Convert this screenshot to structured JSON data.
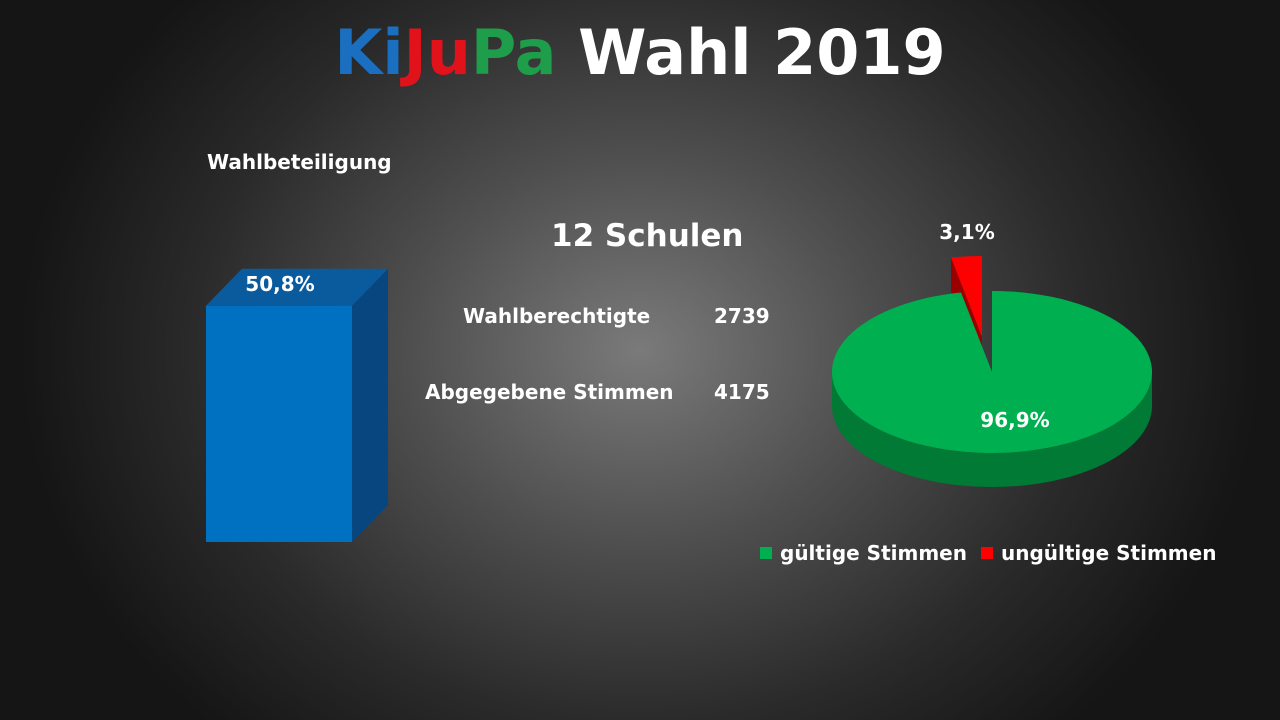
{
  "title": {
    "part1": "Ki",
    "part2": "Ju",
    "part3": "Pa",
    "part4": "Wahl 2019",
    "colors": [
      "#1a6fc0",
      "#e2121b",
      "#1e9e4a",
      "#ffffff"
    ]
  },
  "schools": "12 Schulen",
  "stats": [
    {
      "label": "Wahlberechtigte",
      "value": "2739"
    },
    {
      "label": "Abgegebene Stimmen",
      "value": "4175"
    }
  ],
  "legend": [
    {
      "label": "gültige Stimmen",
      "color": "#00b050"
    },
    {
      "label": "ungültige Stimmen",
      "color": "#ff0000"
    }
  ],
  "chart_data": [
    {
      "type": "bar",
      "title": "Wahlbeteiligung",
      "categories": [
        ""
      ],
      "values": [
        50.8
      ],
      "data_labels": [
        "50,8%"
      ],
      "color": "#0070c0",
      "style": "3d"
    },
    {
      "type": "pie",
      "categories": [
        "gültige Stimmen",
        "ungültige Stimmen"
      ],
      "values": [
        96.9,
        3.1
      ],
      "data_labels": [
        "96,9%",
        "3,1%"
      ],
      "colors": [
        "#00b050",
        "#ff0000"
      ],
      "style": "3d",
      "legend": "bottom"
    }
  ]
}
